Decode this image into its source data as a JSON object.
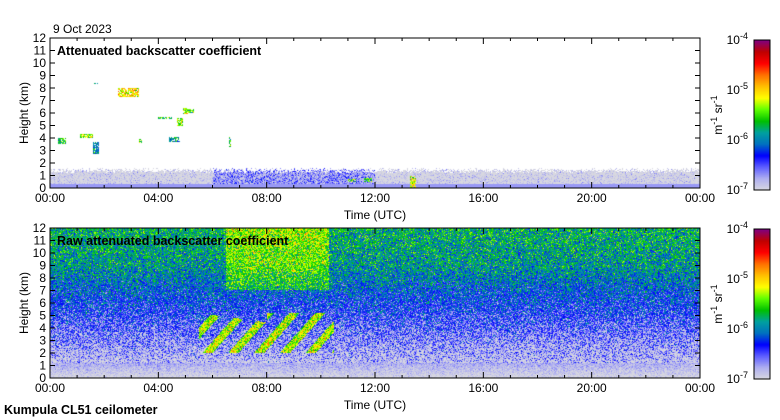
{
  "header": {
    "date": "9 Oct 2023"
  },
  "footer": {
    "instrument": "Kumpula CL51 ceilometer"
  },
  "colors": {
    "colormap": [
      "#d8d8e0",
      "#b0b0f0",
      "#6060ff",
      "#0000ff",
      "#0070c0",
      "#00a0a0",
      "#00c000",
      "#60ff00",
      "#ffff00",
      "#ffc000",
      "#ff7000",
      "#ff0000",
      "#c00000",
      "#800080"
    ]
  },
  "chart_data": [
    {
      "type": "heatmap",
      "title": "Attenuated backscatter coefficient",
      "xlabel": "Time (UTC)",
      "ylabel": "Height (km)",
      "xticks": [
        "00:00",
        "04:00",
        "08:00",
        "12:00",
        "16:00",
        "20:00",
        "00:00"
      ],
      "xlim_hours": [
        0,
        24
      ],
      "yticks": [
        "0",
        "1",
        "2",
        "3",
        "4",
        "5",
        "6",
        "7",
        "8",
        "9",
        "10",
        "11",
        "12"
      ],
      "ylim_km": [
        0,
        12
      ],
      "colorbar": {
        "label": "m-1 sr-1",
        "ticks": [
          "10-7",
          "10-6",
          "10-5",
          "10-4"
        ],
        "range": [
          1e-07,
          0.0001
        ],
        "scale": "log"
      },
      "clouds": [
        {
          "t": [
            0.3,
            0.6
          ],
          "h": [
            3.5,
            4.0
          ],
          "log": -5.6
        },
        {
          "t": [
            1.1,
            1.6
          ],
          "h": [
            4.0,
            4.3
          ],
          "log": -5.3
        },
        {
          "t": [
            1.6,
            1.8
          ],
          "h": [
            2.7,
            3.7
          ],
          "log": -6.0
        },
        {
          "t": [
            1.6,
            1.9
          ],
          "h": [
            8.3,
            8.4
          ],
          "log": -5.8
        },
        {
          "t": [
            2.5,
            3.3
          ],
          "h": [
            7.3,
            8.0
          ],
          "log": -5.1
        },
        {
          "t": [
            3.3,
            3.4
          ],
          "h": [
            3.6,
            3.9
          ],
          "log": -5.5
        },
        {
          "t": [
            4.0,
            4.5
          ],
          "h": [
            5.5,
            5.7
          ],
          "log": -5.6
        },
        {
          "t": [
            4.4,
            4.8
          ],
          "h": [
            3.7,
            4.1
          ],
          "log": -5.9
        },
        {
          "t": [
            4.7,
            4.9
          ],
          "h": [
            5.0,
            5.6
          ],
          "log": -5.4
        },
        {
          "t": [
            4.9,
            5.1
          ],
          "h": [
            5.9,
            6.4
          ],
          "log": -5.3
        },
        {
          "t": [
            5.1,
            5.3
          ],
          "h": [
            6.0,
            6.3
          ],
          "log": -5.5
        },
        {
          "t": [
            6.6,
            6.7
          ],
          "h": [
            3.3,
            4.1
          ],
          "log": -5.6
        },
        {
          "t": [
            11.0,
            11.3
          ],
          "h": [
            0.5,
            0.7
          ],
          "log": -5.4
        },
        {
          "t": [
            11.6,
            11.9
          ],
          "h": [
            0.5,
            0.8
          ],
          "log": -5.5
        },
        {
          "t": [
            13.3,
            13.5
          ],
          "h": [
            0.0,
            1.0
          ],
          "log": -5.2
        }
      ]
    },
    {
      "type": "heatmap",
      "title": "Raw attenuated backscatter coefficient",
      "xlabel": "Time (UTC)",
      "ylabel": "Height (km)",
      "xticks": [
        "00:00",
        "04:00",
        "08:00",
        "12:00",
        "16:00",
        "20:00",
        "00:00"
      ],
      "xlim_hours": [
        0,
        24
      ],
      "yticks": [
        "0",
        "1",
        "2",
        "3",
        "4",
        "5",
        "6",
        "7",
        "8",
        "9",
        "10",
        "11",
        "12"
      ],
      "ylim_km": [
        0,
        12
      ],
      "colorbar": {
        "label": "m-1 sr-1",
        "ticks": [
          "10-7",
          "10-6",
          "10-5",
          "10-4"
        ],
        "range": [
          1e-07,
          0.0001
        ],
        "scale": "log"
      },
      "features": [
        {
          "t": [
            6.0,
            10.3
          ],
          "h": [
            2.0,
            5.0
          ],
          "log": -5.2,
          "note": "aerosol/cloud streaks"
        },
        {
          "t": [
            6.5,
            10.3
          ],
          "h": [
            8.0,
            12.0
          ],
          "log": -5.2,
          "note": "noise enhancement"
        }
      ]
    }
  ]
}
